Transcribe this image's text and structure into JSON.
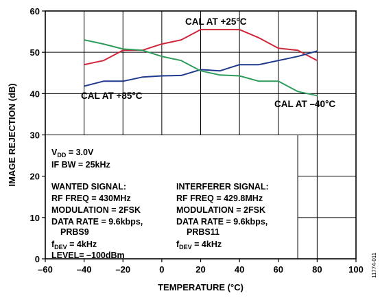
{
  "chart_data": {
    "type": "line",
    "title": "",
    "xlabel": "TEMPERATURE (°C)",
    "ylabel": "IMAGE REJECTION (dB)",
    "xlim": [
      -60,
      100
    ],
    "ylim": [
      0,
      60
    ],
    "xticks": [
      "–60",
      "–40",
      "–20",
      "0",
      "20",
      "40",
      "60",
      "80",
      "100"
    ],
    "yticks": [
      "0",
      "10",
      "20",
      "30",
      "40",
      "50",
      "60"
    ],
    "grid": true,
    "series": [
      {
        "name": "CAL AT +25°C",
        "color": "#d0263b",
        "x": [
          -40,
          -30,
          -20,
          -10,
          0,
          10,
          20,
          30,
          40,
          50,
          60,
          70,
          80
        ],
        "y": [
          47,
          48,
          50.5,
          50.5,
          52,
          53,
          55.5,
          55.5,
          55.5,
          53.5,
          51,
          50.5,
          48
        ]
      },
      {
        "name": "CAL AT +85°C",
        "color": "#1f3a8c",
        "x": [
          -40,
          -30,
          -20,
          -10,
          0,
          10,
          20,
          30,
          40,
          50,
          60,
          70,
          80
        ],
        "y": [
          41.8,
          43,
          43,
          44,
          44.3,
          44.4,
          45.8,
          45.5,
          47,
          47,
          48,
          49,
          50.3
        ]
      },
      {
        "name": "CAL AT –40°C",
        "color": "#2e9b5a",
        "x": [
          -40,
          -30,
          -20,
          -10,
          0,
          10,
          20,
          30,
          40,
          50,
          60,
          70,
          80
        ],
        "y": [
          53,
          52,
          50.8,
          50.5,
          49,
          48,
          45.5,
          44.5,
          44.3,
          43,
          43,
          40.5,
          39.5
        ]
      }
    ],
    "annotations": [
      {
        "text": "CAL AT +25°C"
      },
      {
        "text": "CAL AT +85°C"
      },
      {
        "text": "CAL AT –40°C"
      }
    ],
    "conditions": {
      "vdd_label": "V",
      "vdd_sub": "DD",
      "vdd_value": " = 3.0V",
      "if_bw": "IF BW = 25kHz",
      "wanted": {
        "heading": "WANTED SIGNAL:",
        "rf_freq": "RF FREQ = 430MHz",
        "modulation": "MODULATION = 2FSK",
        "data_rate": "DATA RATE = 9.6kbps,",
        "prbs": "PRBS9",
        "fdev_label": "f",
        "fdev_sub": "DEV",
        "fdev_value": " = 4kHz",
        "level": "LEVEL= –100dBm"
      },
      "interferer": {
        "heading": "INTERFERER SIGNAL:",
        "rf_freq": "RF FREQ = 429.8MHz",
        "modulation": "MODULATION = 2FSK",
        "data_rate": "DATA RATE = 9.6kbps,",
        "prbs": "PRBS11",
        "fdev_label": "f",
        "fdev_sub": "DEV",
        "fdev_value": " = 4kHz"
      }
    },
    "figure_id": "11774-011"
  }
}
